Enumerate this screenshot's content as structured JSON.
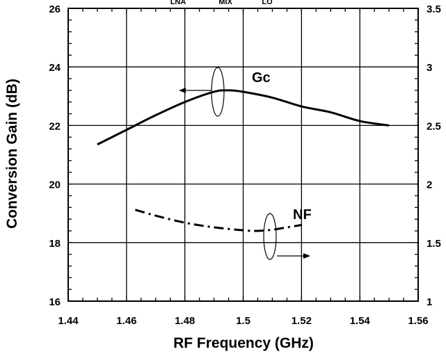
{
  "chart_data": {
    "type": "line",
    "xlabel": "RF Frequency (GHz)",
    "ylabel": "Conversion Gain (dB)",
    "xlim": [
      1.44,
      1.56
    ],
    "ylim": [
      16,
      26
    ],
    "y2lim": [
      1,
      3.5
    ],
    "x_ticks": [
      "1.44",
      "1.46",
      "1.48",
      "1.5",
      "1.52",
      "1.54",
      "1.56"
    ],
    "y_ticks": [
      "16",
      "18",
      "20",
      "22",
      "24",
      "26"
    ],
    "y2_ticks": [
      "1",
      "1.5",
      "2",
      "2.5",
      "3",
      "3.5"
    ],
    "grid": true,
    "top_labels": [
      "LNA",
      "MIX",
      "LO"
    ],
    "annotations": [
      "Gc",
      "NF"
    ],
    "series": [
      {
        "name": "Gc",
        "axis": "left",
        "style": "solid",
        "x": [
          1.45,
          1.46,
          1.47,
          1.48,
          1.49,
          1.495,
          1.5,
          1.51,
          1.52,
          1.53,
          1.54,
          1.55
        ],
        "values": [
          21.35,
          21.85,
          22.35,
          22.8,
          23.15,
          23.2,
          23.15,
          22.95,
          22.65,
          22.45,
          22.15,
          22.0
        ]
      },
      {
        "name": "NF",
        "axis": "right",
        "style": "dashdot",
        "x": [
          1.463,
          1.47,
          1.48,
          1.49,
          1.5,
          1.505,
          1.51,
          1.515,
          1.52
        ],
        "values": [
          1.78,
          1.73,
          1.67,
          1.63,
          1.605,
          1.6,
          1.61,
          1.63,
          1.65
        ]
      }
    ]
  }
}
